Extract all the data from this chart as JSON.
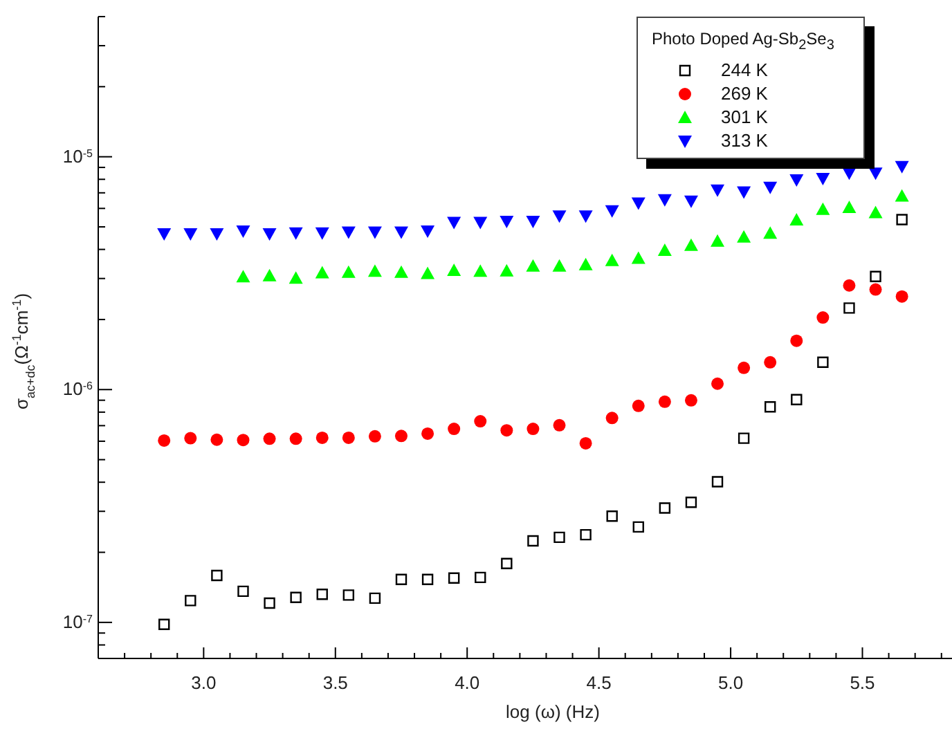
{
  "chart_data": {
    "type": "scatter",
    "xlabel": "log (ω) (Hz)",
    "ylabel": "σ$_{ac+dc}$(Ω$^{-1}$cm$^{-1}$)",
    "legend_title": "Photo Doped Ag-Sb$_{2}$Se$_{3}$",
    "x": [
      2.85,
      2.95,
      3.05,
      3.15,
      3.25,
      3.35,
      3.45,
      3.55,
      3.65,
      3.75,
      3.85,
      3.95,
      4.05,
      4.15,
      4.25,
      4.35,
      4.45,
      4.55,
      4.65,
      4.75,
      4.85,
      4.95,
      5.05,
      5.15,
      5.25,
      5.35,
      5.45,
      5.55,
      5.65
    ],
    "series": [
      {
        "name": "244 K",
        "color": "#000000",
        "marker": "square",
        "values": [
          9.8e-08,
          1.24e-07,
          1.59e-07,
          1.36e-07,
          1.21e-07,
          1.28e-07,
          1.32e-07,
          1.31e-07,
          1.27e-07,
          1.53e-07,
          1.53e-07,
          1.55e-07,
          1.56e-07,
          1.79e-07,
          2.24e-07,
          2.32e-07,
          2.38e-07,
          2.86e-07,
          2.57e-07,
          3.1e-07,
          3.28e-07,
          4.02e-07,
          6.18e-07,
          8.43e-07,
          9.06e-07,
          1.31e-06,
          2.24e-06,
          3.06e-06,
          5.37e-06
        ]
      },
      {
        "name": "269 K",
        "color": "#ff0000",
        "marker": "circle",
        "values": [
          6.04e-07,
          6.18e-07,
          6.09e-07,
          6.07e-07,
          6.15e-07,
          6.15e-07,
          6.21e-07,
          6.21e-07,
          6.3e-07,
          6.32e-07,
          6.47e-07,
          6.78e-07,
          7.31e-07,
          6.68e-07,
          6.78e-07,
          7.03e-07,
          5.88e-07,
          7.55e-07,
          8.51e-07,
          8.87e-07,
          8.99e-07,
          1.06e-06,
          1.24e-06,
          1.31e-06,
          1.62e-06,
          2.04e-06,
          2.8e-06,
          2.69e-06,
          2.51e-06
        ]
      },
      {
        "name": "301 K",
        "color": "#00ff00",
        "marker": "triangle",
        "values": [
          null,
          null,
          null,
          3.05e-06,
          3.08e-06,
          3.01e-06,
          3.17e-06,
          3.19e-06,
          3.22e-06,
          3.19e-06,
          3.15e-06,
          3.25e-06,
          3.22e-06,
          3.23e-06,
          3.39e-06,
          3.39e-06,
          3.44e-06,
          3.58e-06,
          3.66e-06,
          3.96e-06,
          4.16e-06,
          4.34e-06,
          4.52e-06,
          4.69e-06,
          5.35e-06,
          5.94e-06,
          6.05e-06,
          5.75e-06,
          6.78e-06
        ]
      },
      {
        "name": "313 K",
        "color": "#0000ff",
        "marker": "triangle-down",
        "values": [
          4.67e-06,
          4.67e-06,
          4.67e-06,
          4.8e-06,
          4.67e-06,
          4.71e-06,
          4.71e-06,
          4.75e-06,
          4.75e-06,
          4.75e-06,
          4.8e-06,
          5.23e-06,
          5.23e-06,
          5.28e-06,
          5.28e-06,
          5.57e-06,
          5.57e-06,
          5.86e-06,
          6.33e-06,
          6.54e-06,
          6.45e-06,
          7.2e-06,
          7.06e-06,
          7.4e-06,
          7.96e-06,
          8.07e-06,
          8.51e-06,
          8.51e-06,
          9.08e-06
        ]
      }
    ],
    "log": "y",
    "xlim": [
      2.6,
      5.84
    ],
    "ylim": [
      7e-08,
      4e-05
    ],
    "xticks": [
      {
        "value": 2.7,
        "label": null
      },
      {
        "value": 2.8,
        "label": null
      },
      {
        "value": 2.9,
        "label": null
      },
      {
        "value": 3.0,
        "label": "3.0"
      },
      {
        "value": 3.1,
        "label": null
      },
      {
        "value": 3.2,
        "label": null
      },
      {
        "value": 3.3,
        "label": null
      },
      {
        "value": 3.4,
        "label": null
      },
      {
        "value": 3.5,
        "label": "3.5"
      },
      {
        "value": 3.6,
        "label": null
      },
      {
        "value": 3.7,
        "label": null
      },
      {
        "value": 3.8,
        "label": null
      },
      {
        "value": 3.9,
        "label": null
      },
      {
        "value": 4.0,
        "label": "4.0"
      },
      {
        "value": 4.1,
        "label": null
      },
      {
        "value": 4.2,
        "label": null
      },
      {
        "value": 4.3,
        "label": null
      },
      {
        "value": 4.4,
        "label": null
      },
      {
        "value": 4.5,
        "label": "4.5"
      },
      {
        "value": 4.6,
        "label": null
      },
      {
        "value": 4.7,
        "label": null
      },
      {
        "value": 4.8,
        "label": null
      },
      {
        "value": 4.9,
        "label": null
      },
      {
        "value": 5.0,
        "label": "5.0"
      },
      {
        "value": 5.1,
        "label": null
      },
      {
        "value": 5.2,
        "label": null
      },
      {
        "value": 5.3,
        "label": null
      },
      {
        "value": 5.4,
        "label": null
      },
      {
        "value": 5.5,
        "label": "5.5"
      },
      {
        "value": 5.6,
        "label": null
      },
      {
        "value": 5.7,
        "label": null
      },
      {
        "value": 5.8,
        "label": null
      }
    ],
    "yticks": [
      {
        "value": 8e-08,
        "label": null
      },
      {
        "value": 9e-08,
        "label": null
      },
      {
        "value": 1e-07,
        "label": "10$^{-7}$"
      },
      {
        "value": 2e-07,
        "label": null
      },
      {
        "value": 3e-07,
        "label": null
      },
      {
        "value": 4e-07,
        "label": null
      },
      {
        "value": 5e-07,
        "label": null
      },
      {
        "value": 6e-07,
        "label": null
      },
      {
        "value": 7e-07,
        "label": null
      },
      {
        "value": 8e-07,
        "label": null
      },
      {
        "value": 9e-07,
        "label": null
      },
      {
        "value": 1e-06,
        "label": "10$^{-6}$"
      },
      {
        "value": 2e-06,
        "label": null
      },
      {
        "value": 3e-06,
        "label": null
      },
      {
        "value": 4e-06,
        "label": null
      },
      {
        "value": 5e-06,
        "label": null
      },
      {
        "value": 6e-06,
        "label": null
      },
      {
        "value": 7e-06,
        "label": null
      },
      {
        "value": 8e-06,
        "label": null
      },
      {
        "value": 9e-06,
        "label": null
      },
      {
        "value": 1e-05,
        "label": "10$^{-5}$"
      },
      {
        "value": 2e-05,
        "label": null
      },
      {
        "value": 3e-05,
        "label": null
      },
      {
        "value": 4e-05,
        "label": null
      }
    ],
    "grid": false,
    "legend": "top right"
  }
}
